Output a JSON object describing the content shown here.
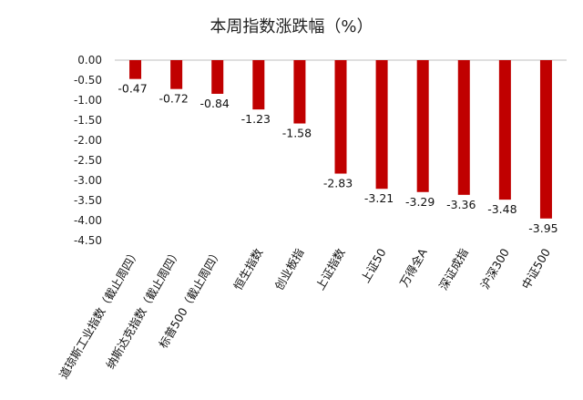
{
  "chart_data": {
    "type": "bar",
    "title": "本周指数涨跌幅（%）",
    "xlabel": "",
    "ylabel": "",
    "ylim": [
      -4.5,
      0
    ],
    "yticks": [
      "0.00",
      "-0.50",
      "-1.00",
      "-1.50",
      "-2.00",
      "-2.50",
      "-3.00",
      "-3.50",
      "-4.00",
      "-4.50"
    ],
    "categories": [
      "道琼斯工业指数（截止周四）",
      "纳斯达克指数（截止周四）",
      "标普500（截止周四）",
      "恒生指数",
      "创业板指",
      "上证指数",
      "上证50",
      "万得全A",
      "深证成指",
      "沪深300",
      "中证500"
    ],
    "values": [
      -0.47,
      -0.72,
      -0.84,
      -1.23,
      -1.58,
      -2.83,
      -3.21,
      -3.29,
      -3.36,
      -3.48,
      -3.95
    ],
    "data_labels": [
      "-0.47",
      "-0.72",
      "-0.84",
      "-1.23",
      "-1.58",
      "-2.83",
      "-3.21",
      "-3.29",
      "-3.36",
      "-3.48",
      "-3.95"
    ],
    "bar_color": "#c00000",
    "grid": false,
    "legend": "none"
  }
}
